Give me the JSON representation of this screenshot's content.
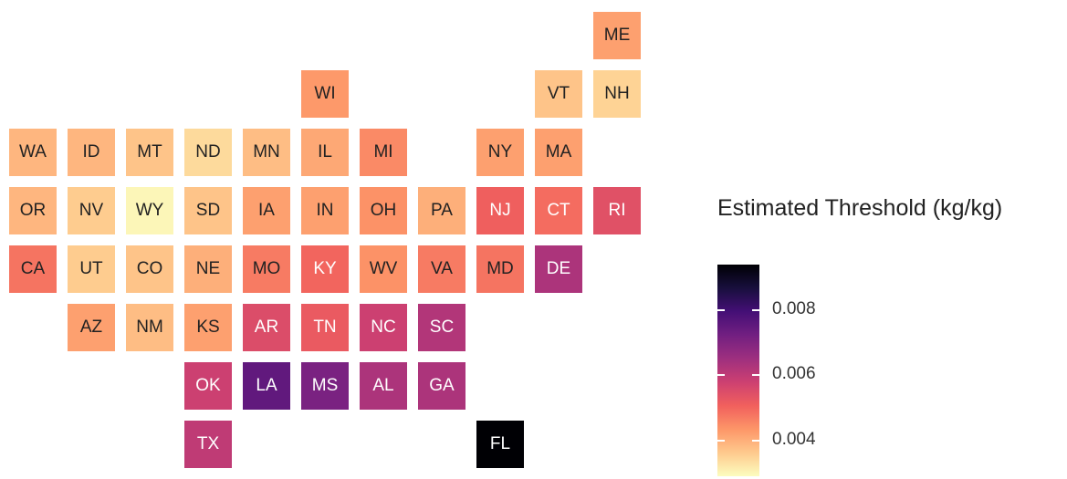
{
  "legend": {
    "title": "Estimated Threshold (kg/kg)",
    "ticks": [
      {
        "value": 0.008,
        "label": "0.008"
      },
      {
        "value": 0.006,
        "label": "0.006"
      },
      {
        "value": 0.004,
        "label": "0.004"
      }
    ],
    "range": [
      0.0029,
      0.0094
    ],
    "colors": [
      "#fcfdbf",
      "#feca8d",
      "#fd9668",
      "#f1605d",
      "#cd4071",
      "#9e2f7f",
      "#721f81",
      "#440f76",
      "#180f3d",
      "#000004"
    ]
  },
  "chart_data": {
    "type": "heatmap",
    "map_type": "US state tile grid map",
    "states": [
      {
        "abbr": "ME",
        "row": 0,
        "col": 10,
        "value": 0.0042
      },
      {
        "abbr": "WI",
        "row": 1,
        "col": 5,
        "value": 0.0043
      },
      {
        "abbr": "VT",
        "row": 1,
        "col": 9,
        "value": 0.0037
      },
      {
        "abbr": "NH",
        "row": 1,
        "col": 10,
        "value": 0.0035
      },
      {
        "abbr": "WA",
        "row": 2,
        "col": 0,
        "value": 0.0039
      },
      {
        "abbr": "ID",
        "row": 2,
        "col": 1,
        "value": 0.0039
      },
      {
        "abbr": "MT",
        "row": 2,
        "col": 2,
        "value": 0.0037
      },
      {
        "abbr": "ND",
        "row": 2,
        "col": 3,
        "value": 0.0034
      },
      {
        "abbr": "MN",
        "row": 2,
        "col": 4,
        "value": 0.0038
      },
      {
        "abbr": "IL",
        "row": 2,
        "col": 5,
        "value": 0.0041
      },
      {
        "abbr": "MI",
        "row": 2,
        "col": 6,
        "value": 0.0045
      },
      {
        "abbr": "NY",
        "row": 2,
        "col": 8,
        "value": 0.0042
      },
      {
        "abbr": "MA",
        "row": 2,
        "col": 9,
        "value": 0.0042
      },
      {
        "abbr": "OR",
        "row": 3,
        "col": 0,
        "value": 0.0039
      },
      {
        "abbr": "NV",
        "row": 3,
        "col": 1,
        "value": 0.0036
      },
      {
        "abbr": "WY",
        "row": 3,
        "col": 2,
        "value": 0.003
      },
      {
        "abbr": "SD",
        "row": 3,
        "col": 3,
        "value": 0.0037
      },
      {
        "abbr": "IA",
        "row": 3,
        "col": 4,
        "value": 0.0042
      },
      {
        "abbr": "IN",
        "row": 3,
        "col": 5,
        "value": 0.0042
      },
      {
        "abbr": "OH",
        "row": 3,
        "col": 6,
        "value": 0.0044
      },
      {
        "abbr": "PA",
        "row": 3,
        "col": 7,
        "value": 0.004
      },
      {
        "abbr": "NJ",
        "row": 3,
        "col": 8,
        "value": 0.0051
      },
      {
        "abbr": "CT",
        "row": 3,
        "col": 9,
        "value": 0.0049
      },
      {
        "abbr": "RI",
        "row": 3,
        "col": 10,
        "value": 0.0054
      },
      {
        "abbr": "CA",
        "row": 4,
        "col": 0,
        "value": 0.0048
      },
      {
        "abbr": "UT",
        "row": 4,
        "col": 1,
        "value": 0.0036
      },
      {
        "abbr": "CO",
        "row": 4,
        "col": 2,
        "value": 0.0037
      },
      {
        "abbr": "NE",
        "row": 4,
        "col": 3,
        "value": 0.004
      },
      {
        "abbr": "MO",
        "row": 4,
        "col": 4,
        "value": 0.0047
      },
      {
        "abbr": "KY",
        "row": 4,
        "col": 5,
        "value": 0.005
      },
      {
        "abbr": "WV",
        "row": 4,
        "col": 6,
        "value": 0.0044
      },
      {
        "abbr": "VA",
        "row": 4,
        "col": 7,
        "value": 0.0047
      },
      {
        "abbr": "MD",
        "row": 4,
        "col": 8,
        "value": 0.0048
      },
      {
        "abbr": "DE",
        "row": 4,
        "col": 9,
        "value": 0.0063
      },
      {
        "abbr": "AZ",
        "row": 5,
        "col": 1,
        "value": 0.0042
      },
      {
        "abbr": "NM",
        "row": 5,
        "col": 2,
        "value": 0.0038
      },
      {
        "abbr": "KS",
        "row": 5,
        "col": 3,
        "value": 0.0042
      },
      {
        "abbr": "AR",
        "row": 5,
        "col": 4,
        "value": 0.0055
      },
      {
        "abbr": "TN",
        "row": 5,
        "col": 5,
        "value": 0.0052
      },
      {
        "abbr": "NC",
        "row": 5,
        "col": 6,
        "value": 0.0058
      },
      {
        "abbr": "SC",
        "row": 5,
        "col": 7,
        "value": 0.0062
      },
      {
        "abbr": "OK",
        "row": 6,
        "col": 3,
        "value": 0.0058
      },
      {
        "abbr": "LA",
        "row": 6,
        "col": 4,
        "value": 0.0075
      },
      {
        "abbr": "MS",
        "row": 6,
        "col": 5,
        "value": 0.0071
      },
      {
        "abbr": "AL",
        "row": 6,
        "col": 6,
        "value": 0.0063
      },
      {
        "abbr": "GA",
        "row": 6,
        "col": 7,
        "value": 0.0063
      },
      {
        "abbr": "TX",
        "row": 7,
        "col": 3,
        "value": 0.006
      },
      {
        "abbr": "FL",
        "row": 7,
        "col": 8,
        "value": 0.0094
      }
    ]
  }
}
